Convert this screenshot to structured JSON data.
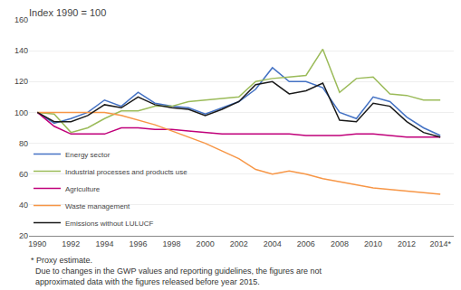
{
  "chart_data": {
    "type": "line",
    "title": "Index 1990 = 100",
    "x": [
      1990,
      1991,
      1992,
      1993,
      1994,
      1995,
      1996,
      1997,
      1998,
      1999,
      2000,
      2001,
      2002,
      2003,
      2004,
      2005,
      2006,
      2007,
      2008,
      2009,
      2010,
      2011,
      2012,
      2013,
      2014
    ],
    "series": [
      {
        "name": "Energy sector",
        "color": "#4472c4",
        "values": [
          100,
          93,
          96,
          100,
          108,
          104,
          113,
          106,
          104,
          103,
          99,
          103,
          107,
          115,
          129,
          120,
          120,
          116,
          100,
          96,
          110,
          107,
          97,
          90,
          85
        ]
      },
      {
        "name": "Industrial processes and products use",
        "color": "#9bbb59",
        "values": [
          100,
          99,
          87,
          90,
          96,
          101,
          101,
          104,
          104,
          107,
          108,
          109,
          110,
          120,
          122,
          123,
          124,
          141,
          113,
          122,
          123,
          112,
          111,
          108,
          108
        ]
      },
      {
        "name": "Agriculture",
        "color": "#c0007a",
        "values": [
          100,
          91,
          86,
          86,
          86,
          90,
          90,
          89,
          89,
          88,
          87,
          86,
          86,
          86,
          86,
          86,
          85,
          85,
          85,
          86,
          86,
          85,
          84,
          84,
          84
        ]
      },
      {
        "name": "Waste management",
        "color": "#f79646",
        "values": [
          100,
          100,
          100,
          100,
          100,
          98,
          95,
          92,
          88,
          84,
          80,
          75,
          70,
          63,
          60,
          62,
          60,
          57,
          55,
          53,
          51,
          50,
          49,
          48,
          47
        ]
      },
      {
        "name": "Emissions without LULUCF",
        "color": "#1a1a1a",
        "values": [
          100,
          94,
          94,
          98,
          105,
          103,
          110,
          105,
          103,
          102,
          98,
          102,
          107,
          118,
          120,
          112,
          114,
          119,
          95,
          94,
          106,
          104,
          94,
          87,
          84
        ]
      }
    ],
    "xlim": [
      1989.5,
      2014.8
    ],
    "xticks": [
      1990,
      1992,
      1994,
      1996,
      1998,
      2000,
      2002,
      2004,
      2006,
      2008,
      2010,
      2012,
      {
        "value": 2014,
        "label": "2014*"
      }
    ],
    "ylim": [
      20,
      160
    ],
    "yticks": [
      20,
      40,
      60,
      80,
      100,
      120,
      140,
      160
    ],
    "grid": "y",
    "legend": "lower left",
    "annotations": [
      "* Proxy estimate.",
      "  Due to changes in the GWP values and reporting guidelines, the figures are not",
      "  approximated data with the figures released before year 2015."
    ]
  }
}
